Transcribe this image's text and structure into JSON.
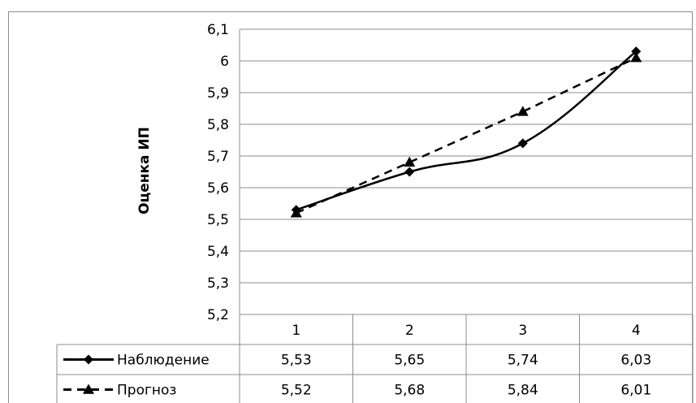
{
  "chart_data": {
    "type": "line",
    "title": "",
    "ylabel": "Оценка ИП",
    "categories": [
      "1",
      "2",
      "3",
      "4"
    ],
    "ylim": [
      5.2,
      6.1
    ],
    "y_ticks": [
      "5,2",
      "5,3",
      "5,4",
      "5,5",
      "5,6",
      "5,7",
      "5,8",
      "5,9",
      "6",
      "6,1"
    ],
    "grid": true,
    "series": [
      {
        "name": "Наблюдение",
        "values": [
          5.53,
          5.65,
          5.74,
          6.03
        ],
        "labels": [
          "5,53",
          "5,65",
          "5,74",
          "6,03"
        ],
        "marker": "diamond",
        "dash": "solid",
        "smooth": true,
        "color": "#000000"
      },
      {
        "name": "Прогноз",
        "values": [
          5.52,
          5.68,
          5.84,
          6.01
        ],
        "labels": [
          "5,52",
          "5,68",
          "5,84",
          "6,01"
        ],
        "marker": "triangle",
        "dash": "dashed",
        "smooth": false,
        "color": "#000000"
      }
    ]
  },
  "colors": {
    "gridline": "#8c8c8c",
    "frame": "#8c8c8c",
    "table_border": "#8c8c8c"
  }
}
